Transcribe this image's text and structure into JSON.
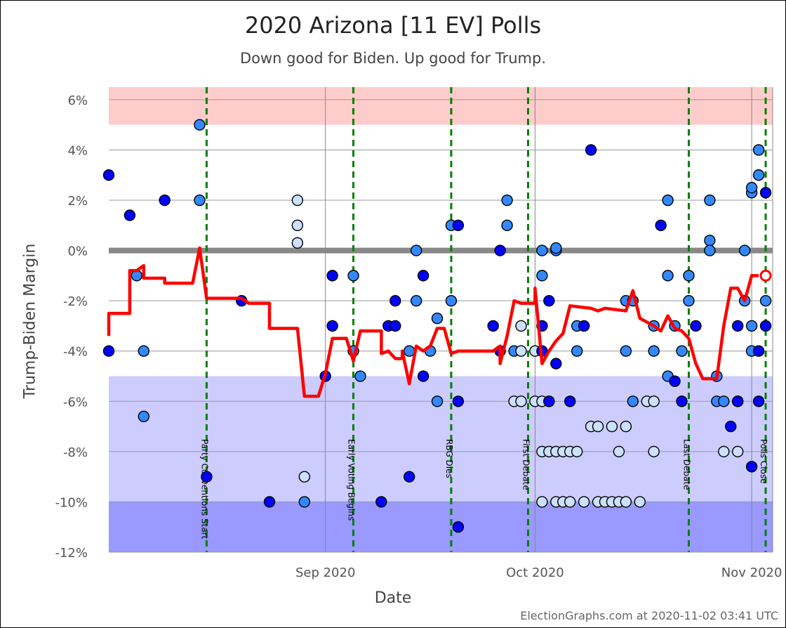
{
  "chart_data": {
    "type": "scatter",
    "title": "2020 Arizona [11 EV] Polls",
    "subtitle": "Down good for Biden. Up good for Trump.",
    "xlabel": "Date",
    "ylabel": "Trump-Biden Margin",
    "credit": "ElectionGraphs.com at 2020-11-02 03:41 UTC",
    "x_range": [
      "2020-08-01",
      "2020-11-04"
    ],
    "ylim": [
      -12,
      6.5
    ],
    "y_ticks": [
      {
        "value": 6,
        "label": "6%"
      },
      {
        "value": 4,
        "label": "4%"
      },
      {
        "value": 2,
        "label": "2%"
      },
      {
        "value": 0,
        "label": "0%"
      },
      {
        "value": -2,
        "label": "-2%"
      },
      {
        "value": -4,
        "label": "-4%"
      },
      {
        "value": -6,
        "label": "-6%"
      },
      {
        "value": -8,
        "label": "-8%"
      },
      {
        "value": -10,
        "label": "-10%"
      },
      {
        "value": -12,
        "label": "-12%"
      }
    ],
    "x_ticks": [
      {
        "date": "2020-09-01",
        "label": "Sep 2020"
      },
      {
        "date": "2020-10-01",
        "label": "Oct 2020"
      },
      {
        "date": "2020-11-01",
        "label": "Nov 2020"
      }
    ],
    "bands": [
      {
        "from": 5,
        "to": 6.5,
        "color": "#ffcccc"
      },
      {
        "from": -10,
        "to": -5,
        "color": "#ccccff"
      },
      {
        "from": -12,
        "to": -10,
        "color": "#9999ff"
      }
    ],
    "zero_line_color": "#888888",
    "events": [
      {
        "date": "2020-08-15",
        "label": "Party Conventions Start"
      },
      {
        "date": "2020-09-05",
        "label": "Early Voting Begins"
      },
      {
        "date": "2020-09-19",
        "label": "RBG Dies"
      },
      {
        "date": "2020-09-30",
        "label": "First Debate"
      },
      {
        "date": "2020-10-23",
        "label": "Last Debate"
      },
      {
        "date": "2020-11-03",
        "label": "Polls Close"
      }
    ],
    "average_line_color": "#ff0000",
    "average": [
      [
        "2020-08-01",
        -3.4
      ],
      [
        "2020-08-01",
        -2.5
      ],
      [
        "2020-08-03",
        -2.5
      ],
      [
        "2020-08-04",
        -2.5
      ],
      [
        "2020-08-04",
        -0.8
      ],
      [
        "2020-08-05",
        -0.8
      ],
      [
        "2020-08-06",
        -0.6
      ],
      [
        "2020-08-06",
        -1.1
      ],
      [
        "2020-08-09",
        -1.1
      ],
      [
        "2020-08-09",
        -1.3
      ],
      [
        "2020-08-13",
        -1.3
      ],
      [
        "2020-08-14",
        0.1
      ],
      [
        "2020-08-15",
        -1.9
      ],
      [
        "2020-08-20",
        -1.9
      ],
      [
        "2020-08-21",
        -2.1
      ],
      [
        "2020-08-24",
        -2.1
      ],
      [
        "2020-08-24",
        -3.1
      ],
      [
        "2020-08-28",
        -3.1
      ],
      [
        "2020-08-29",
        -5.8
      ],
      [
        "2020-08-31",
        -5.8
      ],
      [
        "2020-09-01",
        -4.9
      ],
      [
        "2020-09-02",
        -3.5
      ],
      [
        "2020-09-04",
        -3.5
      ],
      [
        "2020-09-05",
        -4.4
      ],
      [
        "2020-09-06",
        -3.2
      ],
      [
        "2020-09-09",
        -3.2
      ],
      [
        "2020-09-09",
        -4.1
      ],
      [
        "2020-09-10",
        -4.0
      ],
      [
        "2020-09-11",
        -4.3
      ],
      [
        "2020-09-12",
        -4.3
      ],
      [
        "2020-09-12",
        -4.0
      ],
      [
        "2020-09-13",
        -5.3
      ],
      [
        "2020-09-14",
        -3.8
      ],
      [
        "2020-09-15",
        -4.0
      ],
      [
        "2020-09-16",
        -3.8
      ],
      [
        "2020-09-17",
        -3.1
      ],
      [
        "2020-09-18",
        -3.1
      ],
      [
        "2020-09-19",
        -4.1
      ],
      [
        "2020-09-20",
        -4.0
      ],
      [
        "2020-09-25",
        -4.0
      ],
      [
        "2020-09-26",
        -3.8
      ],
      [
        "2020-09-26",
        -4.5
      ],
      [
        "2020-09-27",
        -3.4
      ],
      [
        "2020-09-28",
        -2.0
      ],
      [
        "2020-09-29",
        -2.1
      ],
      [
        "2020-10-01",
        -2.1
      ],
      [
        "2020-10-01",
        -1.5
      ],
      [
        "2020-10-02",
        -4.5
      ],
      [
        "2020-10-03",
        -4.0
      ],
      [
        "2020-10-04",
        -3.6
      ],
      [
        "2020-10-05",
        -3.3
      ],
      [
        "2020-10-06",
        -2.2
      ],
      [
        "2020-10-09",
        -2.3
      ],
      [
        "2020-10-10",
        -2.4
      ],
      [
        "2020-10-11",
        -2.3
      ],
      [
        "2020-10-14",
        -2.4
      ],
      [
        "2020-10-15",
        -1.6
      ],
      [
        "2020-10-16",
        -2.7
      ],
      [
        "2020-10-18",
        -3.0
      ],
      [
        "2020-10-19",
        -3.2
      ],
      [
        "2020-10-20",
        -2.6
      ],
      [
        "2020-10-21",
        -3.1
      ],
      [
        "2020-10-22",
        -3.2
      ],
      [
        "2020-10-23",
        -3.5
      ],
      [
        "2020-10-24",
        -4.5
      ],
      [
        "2020-10-25",
        -5.1
      ],
      [
        "2020-10-27",
        -5.1
      ],
      [
        "2020-10-28",
        -3.0
      ],
      [
        "2020-10-29",
        -1.5
      ],
      [
        "2020-10-30",
        -1.5
      ],
      [
        "2020-10-31",
        -2.0
      ],
      [
        "2020-11-01",
        -1.0
      ],
      [
        "2020-11-02",
        -1.0
      ]
    ],
    "average_endpoint": [
      "2020-11-03",
      -1.0
    ],
    "point_colors": {
      "dark": "#0000ff",
      "mid": "#3388ff",
      "light": "#cce0ff"
    },
    "points": [
      [
        "2020-08-01",
        3.0,
        "dark"
      ],
      [
        "2020-08-01",
        -4.0,
        "dark"
      ],
      [
        "2020-08-04",
        1.4,
        "dark"
      ],
      [
        "2020-08-05",
        -1.0,
        "mid"
      ],
      [
        "2020-08-06",
        -6.6,
        "mid"
      ],
      [
        "2020-08-06",
        -4.0,
        "mid"
      ],
      [
        "2020-08-09",
        2.0,
        "dark"
      ],
      [
        "2020-08-14",
        5.0,
        "mid"
      ],
      [
        "2020-08-14",
        2.0,
        "mid"
      ],
      [
        "2020-08-15",
        -9.0,
        "dark"
      ],
      [
        "2020-08-20",
        -2.0,
        "dark"
      ],
      [
        "2020-08-24",
        -10.0,
        "dark"
      ],
      [
        "2020-08-28",
        2.0,
        "light"
      ],
      [
        "2020-08-28",
        1.0,
        "light"
      ],
      [
        "2020-08-28",
        0.3,
        "light"
      ],
      [
        "2020-08-29",
        -9.0,
        "light"
      ],
      [
        "2020-08-29",
        -10.0,
        "mid"
      ],
      [
        "2020-09-01",
        -5.0,
        "dark"
      ],
      [
        "2020-09-02",
        -1.0,
        "dark"
      ],
      [
        "2020-09-02",
        -3.0,
        "dark"
      ],
      [
        "2020-09-05",
        -4.0,
        "mid"
      ],
      [
        "2020-09-05",
        -1.0,
        "mid"
      ],
      [
        "2020-09-06",
        -5.0,
        "mid"
      ],
      [
        "2020-09-09",
        -10.0,
        "dark"
      ],
      [
        "2020-09-10",
        -3.0,
        "dark"
      ],
      [
        "2020-09-11",
        -2.0,
        "dark"
      ],
      [
        "2020-09-11",
        -3.0,
        "dark"
      ],
      [
        "2020-09-13",
        -4.0,
        "mid"
      ],
      [
        "2020-09-13",
        -9.0,
        "dark"
      ],
      [
        "2020-09-14",
        0.0,
        "mid"
      ],
      [
        "2020-09-14",
        -2.0,
        "mid"
      ],
      [
        "2020-09-15",
        -1.0,
        "dark"
      ],
      [
        "2020-09-15",
        -5.0,
        "dark"
      ],
      [
        "2020-09-16",
        -4.0,
        "mid"
      ],
      [
        "2020-09-17",
        -2.7,
        "mid"
      ],
      [
        "2020-09-17",
        -6.0,
        "mid"
      ],
      [
        "2020-09-19",
        1.0,
        "mid"
      ],
      [
        "2020-09-19",
        -2.0,
        "mid"
      ],
      [
        "2020-09-20",
        1.0,
        "dark"
      ],
      [
        "2020-09-20",
        -11.0,
        "dark"
      ],
      [
        "2020-09-20",
        -6.0,
        "dark"
      ],
      [
        "2020-09-25",
        -3.0,
        "dark"
      ],
      [
        "2020-09-26",
        -4.0,
        "dark"
      ],
      [
        "2020-09-26",
        0.0,
        "dark"
      ],
      [
        "2020-09-27",
        2.0,
        "mid"
      ],
      [
        "2020-09-27",
        1.0,
        "mid"
      ],
      [
        "2020-09-28",
        -4.0,
        "mid"
      ],
      [
        "2020-09-28",
        -6.0,
        "light"
      ],
      [
        "2020-09-29",
        -3.0,
        "light"
      ],
      [
        "2020-09-29",
        -4.0,
        "light"
      ],
      [
        "2020-09-29",
        -6.0,
        "light"
      ],
      [
        "2020-10-01",
        -6.0,
        "light"
      ],
      [
        "2020-10-01",
        -4.0,
        "light"
      ],
      [
        "2020-10-02",
        -6.0,
        "light"
      ],
      [
        "2020-10-02",
        -8.0,
        "light"
      ],
      [
        "2020-10-02",
        -10.0,
        "light"
      ],
      [
        "2020-10-02",
        0.0,
        "mid"
      ],
      [
        "2020-10-02",
        -1.0,
        "mid"
      ],
      [
        "2020-10-02",
        -3.0,
        "dark"
      ],
      [
        "2020-10-02",
        -4.0,
        "dark"
      ],
      [
        "2020-10-03",
        -8.0,
        "light"
      ],
      [
        "2020-10-03",
        -6.0,
        "light"
      ],
      [
        "2020-10-03",
        -2.0,
        "dark"
      ],
      [
        "2020-10-03",
        -6.0,
        "dark"
      ],
      [
        "2020-10-04",
        -10.0,
        "light"
      ],
      [
        "2020-10-04",
        -8.0,
        "light"
      ],
      [
        "2020-10-04",
        -4.5,
        "dark"
      ],
      [
        "2020-10-04",
        0.0,
        "mid"
      ],
      [
        "2020-10-04",
        0.1,
        "mid"
      ],
      [
        "2020-10-05",
        -8.0,
        "light"
      ],
      [
        "2020-10-05",
        -10.0,
        "light"
      ],
      [
        "2020-10-06",
        -8.0,
        "light"
      ],
      [
        "2020-10-06",
        -10.0,
        "light"
      ],
      [
        "2020-10-06",
        -6.0,
        "dark"
      ],
      [
        "2020-10-07",
        -4.0,
        "mid"
      ],
      [
        "2020-10-07",
        -3.0,
        "mid"
      ],
      [
        "2020-10-07",
        -8.0,
        "light"
      ],
      [
        "2020-10-08",
        -3.0,
        "dark"
      ],
      [
        "2020-10-08",
        -10.0,
        "light"
      ],
      [
        "2020-10-09",
        4.0,
        "dark"
      ],
      [
        "2020-10-09",
        -7.0,
        "light"
      ],
      [
        "2020-10-10",
        -10.0,
        "light"
      ],
      [
        "2020-10-10",
        -7.0,
        "light"
      ],
      [
        "2020-10-11",
        -10.0,
        "light"
      ],
      [
        "2020-10-12",
        -7.0,
        "light"
      ],
      [
        "2020-10-12",
        -10.0,
        "light"
      ],
      [
        "2020-10-13",
        -8.0,
        "light"
      ],
      [
        "2020-10-13",
        -10.0,
        "light"
      ],
      [
        "2020-10-14",
        -2.0,
        "mid"
      ],
      [
        "2020-10-14",
        -4.0,
        "mid"
      ],
      [
        "2020-10-14",
        -7.0,
        "light"
      ],
      [
        "2020-10-14",
        -10.0,
        "light"
      ],
      [
        "2020-10-15",
        -2.0,
        "mid"
      ],
      [
        "2020-10-15",
        -6.0,
        "mid"
      ],
      [
        "2020-10-16",
        -10.0,
        "light"
      ],
      [
        "2020-10-17",
        -6.0,
        "light"
      ],
      [
        "2020-10-18",
        -6.0,
        "light"
      ],
      [
        "2020-10-18",
        -8.0,
        "light"
      ],
      [
        "2020-10-18",
        -3.0,
        "mid"
      ],
      [
        "2020-10-18",
        -4.0,
        "mid"
      ],
      [
        "2020-10-19",
        1.0,
        "dark"
      ],
      [
        "2020-10-20",
        2.0,
        "mid"
      ],
      [
        "2020-10-20",
        -1.0,
        "mid"
      ],
      [
        "2020-10-20",
        -5.0,
        "mid"
      ],
      [
        "2020-10-21",
        -5.2,
        "dark"
      ],
      [
        "2020-10-21",
        -3.0,
        "mid"
      ],
      [
        "2020-10-22",
        -4.0,
        "mid"
      ],
      [
        "2020-10-22",
        -6.0,
        "dark"
      ],
      [
        "2020-10-23",
        -1.0,
        "mid"
      ],
      [
        "2020-10-23",
        -2.0,
        "mid"
      ],
      [
        "2020-10-24",
        -3.0,
        "dark"
      ],
      [
        "2020-10-26",
        2.0,
        "mid"
      ],
      [
        "2020-10-26",
        0.4,
        "mid"
      ],
      [
        "2020-10-26",
        0.0,
        "mid"
      ],
      [
        "2020-10-27",
        -5.0,
        "mid"
      ],
      [
        "2020-10-27",
        -6.0,
        "mid"
      ],
      [
        "2020-10-28",
        -8.0,
        "light"
      ],
      [
        "2020-10-28",
        -6.0,
        "mid"
      ],
      [
        "2020-10-29",
        -7.0,
        "dark"
      ],
      [
        "2020-10-30",
        -8.0,
        "light"
      ],
      [
        "2020-10-30",
        -6.0,
        "mid"
      ],
      [
        "2020-10-30",
        -3.0,
        "dark"
      ],
      [
        "2020-10-30",
        -6.0,
        "dark"
      ],
      [
        "2020-10-31",
        0.0,
        "mid"
      ],
      [
        "2020-10-31",
        -2.0,
        "mid"
      ],
      [
        "2020-11-01",
        -8.6,
        "dark"
      ],
      [
        "2020-11-01",
        2.3,
        "mid"
      ],
      [
        "2020-11-01",
        2.5,
        "mid"
      ],
      [
        "2020-11-01",
        -3.0,
        "mid"
      ],
      [
        "2020-11-01",
        -4.0,
        "mid"
      ],
      [
        "2020-11-02",
        -4.0,
        "dark"
      ],
      [
        "2020-11-02",
        4.0,
        "mid"
      ],
      [
        "2020-11-02",
        3.0,
        "mid"
      ],
      [
        "2020-11-02",
        -6.0,
        "dark"
      ],
      [
        "2020-11-03",
        -3.0,
        "dark"
      ],
      [
        "2020-11-03",
        -2.0,
        "mid"
      ],
      [
        "2020-11-03",
        2.3,
        "dark"
      ]
    ]
  }
}
